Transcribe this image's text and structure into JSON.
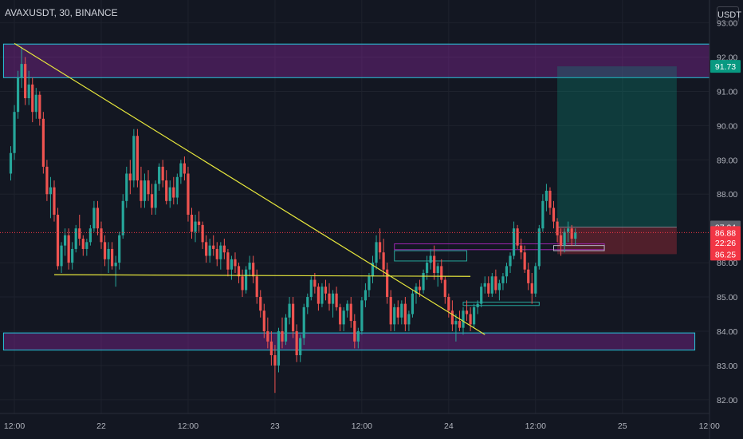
{
  "chart_data": {
    "type": "candlestick",
    "title": "AVAXUSDT, 30, BINANCE",
    "unit": "USDT",
    "ylim": [
      81.6,
      93.2
    ],
    "y_ticks": [
      "93.00",
      "92.00",
      "91.00",
      "90.00",
      "89.00",
      "88.00",
      "86.00",
      "85.00",
      "84.00",
      "83.00",
      "82.00"
    ],
    "x_ticks": [
      {
        "label": "12:00",
        "t": 1
      },
      {
        "label": "22",
        "t": 25
      },
      {
        "label": "12:00",
        "t": 49
      },
      {
        "label": "23",
        "t": 73
      },
      {
        "label": "12:00",
        "t": 97
      },
      {
        "label": "24",
        "t": 121
      },
      {
        "label": "12:00",
        "t": 145
      },
      {
        "label": "25",
        "t": 169
      },
      {
        "label": "12:00",
        "t": 193
      }
    ],
    "price_tags": [
      {
        "label": "91.73",
        "price": 91.73,
        "color": "#089981"
      },
      {
        "label": "87.04",
        "price": 87.04,
        "color": "#5d606b"
      },
      {
        "label": "86.88",
        "price": 86.88,
        "color": "#f23645"
      },
      {
        "label": "22:26",
        "price": 86.58,
        "color": "#f23645"
      },
      {
        "label": "86.25",
        "price": 86.25,
        "color": "#f23645"
      }
    ],
    "current_price": 86.88,
    "zones": [
      {
        "t1": -2,
        "t2": 196,
        "p_top": 92.38,
        "p_bot": 91.4
      },
      {
        "t1": -2,
        "t2": 189,
        "p_top": 83.95,
        "p_bot": 83.45
      }
    ],
    "small_boxes": [
      {
        "t1": 106,
        "t2": 164,
        "p_top": 86.55,
        "p_bot": 86.38,
        "color": "#9c27b0"
      },
      {
        "t1": 106,
        "t2": 126,
        "p_top": 86.35,
        "p_bot": 86.05,
        "color": "#26a69a"
      },
      {
        "t1": 125,
        "t2": 146,
        "p_top": 84.85,
        "p_bot": 84.75,
        "color": "#26a69a"
      },
      {
        "t1": 150,
        "t2": 164,
        "p_top": 86.5,
        "p_bot": 86.35,
        "color": "#b2b5be"
      }
    ],
    "trendlines": [
      {
        "t1": 1,
        "p1": 92.4,
        "t2": 131,
        "p2": 83.9
      },
      {
        "t1": 12,
        "p1": 85.65,
        "t2": 127,
        "p2": 85.6
      }
    ],
    "position": {
      "t1": 151,
      "t2": 184,
      "entry": 87.04,
      "target": 91.73,
      "stop": 86.25
    },
    "candles": [
      [
        88.6,
        89.4,
        88.4,
        89.2
      ],
      [
        89.2,
        90.6,
        89.0,
        90.4
      ],
      [
        90.4,
        91.6,
        90.2,
        91.4
      ],
      [
        91.4,
        92.3,
        91.1,
        91.8
      ],
      [
        91.8,
        92.0,
        90.6,
        90.8
      ],
      [
        90.8,
        91.6,
        90.6,
        91.2
      ],
      [
        91.2,
        91.4,
        90.1,
        90.4
      ],
      [
        90.4,
        91.1,
        90.2,
        90.9
      ],
      [
        90.9,
        91.0,
        90.0,
        90.2
      ],
      [
        90.2,
        90.4,
        88.6,
        88.8
      ],
      [
        88.8,
        89.0,
        87.8,
        88.0
      ],
      [
        88.0,
        88.5,
        87.3,
        88.2
      ],
      [
        88.2,
        88.4,
        87.2,
        87.4
      ],
      [
        87.4,
        87.6,
        85.8,
        85.9
      ],
      [
        85.9,
        86.6,
        85.7,
        86.5
      ],
      [
        86.5,
        87.0,
        86.2,
        86.8
      ],
      [
        86.8,
        87.0,
        85.8,
        86.0
      ],
      [
        86.0,
        86.6,
        85.8,
        86.4
      ],
      [
        86.4,
        87.1,
        86.3,
        87.0
      ],
      [
        87.0,
        87.4,
        86.5,
        86.7
      ],
      [
        86.7,
        86.8,
        86.2,
        86.4
      ],
      [
        86.4,
        86.7,
        86.2,
        86.6
      ],
      [
        86.6,
        87.1,
        86.5,
        87.0
      ],
      [
        87.0,
        87.8,
        86.9,
        87.6
      ],
      [
        87.6,
        87.8,
        86.8,
        87.0
      ],
      [
        87.0,
        87.2,
        86.4,
        86.6
      ],
      [
        86.6,
        86.8,
        85.9,
        86.1
      ],
      [
        86.1,
        86.6,
        85.7,
        86.4
      ],
      [
        86.4,
        86.6,
        85.8,
        85.9
      ],
      [
        85.9,
        86.2,
        85.3,
        86.0
      ],
      [
        86.0,
        86.9,
        85.8,
        86.8
      ],
      [
        86.8,
        88.0,
        86.7,
        87.8
      ],
      [
        87.8,
        88.8,
        87.6,
        88.6
      ],
      [
        88.6,
        89.0,
        88.0,
        88.4
      ],
      [
        88.4,
        89.9,
        88.2,
        89.7
      ],
      [
        89.7,
        89.9,
        88.2,
        88.4
      ],
      [
        88.4,
        88.8,
        87.6,
        87.8
      ],
      [
        87.8,
        88.6,
        87.6,
        88.4
      ],
      [
        88.4,
        88.7,
        87.8,
        88.0
      ],
      [
        88.0,
        88.3,
        87.4,
        87.6
      ],
      [
        87.6,
        88.4,
        87.4,
        88.3
      ],
      [
        88.3,
        88.9,
        88.1,
        88.8
      ],
      [
        88.8,
        89.0,
        88.2,
        88.4
      ],
      [
        88.4,
        88.7,
        87.7,
        87.8
      ],
      [
        87.8,
        88.4,
        87.6,
        88.2
      ],
      [
        88.2,
        88.5,
        87.7,
        87.9
      ],
      [
        87.9,
        88.6,
        87.7,
        88.5
      ],
      [
        88.5,
        89.0,
        88.3,
        88.9
      ],
      [
        88.9,
        89.1,
        88.4,
        88.6
      ],
      [
        88.6,
        88.8,
        87.2,
        87.4
      ],
      [
        87.4,
        87.6,
        86.7,
        86.9
      ],
      [
        86.9,
        87.4,
        86.6,
        87.2
      ],
      [
        87.2,
        87.5,
        86.9,
        87.1
      ],
      [
        87.1,
        87.2,
        86.4,
        86.6
      ],
      [
        86.6,
        86.8,
        86.0,
        86.2
      ],
      [
        86.2,
        86.7,
        86.0,
        86.5
      ],
      [
        86.5,
        86.8,
        86.2,
        86.4
      ],
      [
        86.4,
        86.6,
        85.9,
        86.1
      ],
      [
        86.1,
        86.6,
        85.8,
        86.5
      ],
      [
        86.5,
        86.7,
        86.1,
        86.3
      ],
      [
        86.3,
        86.4,
        85.6,
        85.8
      ],
      [
        85.8,
        86.2,
        85.5,
        86.1
      ],
      [
        86.1,
        86.3,
        85.7,
        85.9
      ],
      [
        85.9,
        86.0,
        85.4,
        85.6
      ],
      [
        85.6,
        85.8,
        85.0,
        85.2
      ],
      [
        85.2,
        85.9,
        85.1,
        85.8
      ],
      [
        85.8,
        86.2,
        85.6,
        86.0
      ],
      [
        86.0,
        86.2,
        85.4,
        85.6
      ],
      [
        85.6,
        85.8,
        84.8,
        85.0
      ],
      [
        85.0,
        85.2,
        84.4,
        84.6
      ],
      [
        84.6,
        84.8,
        83.8,
        84.0
      ],
      [
        84.0,
        84.4,
        83.5,
        83.7
      ],
      [
        83.7,
        84.0,
        83.0,
        83.3
      ],
      [
        83.3,
        83.6,
        82.2,
        83.0
      ],
      [
        83.0,
        84.1,
        82.8,
        84.0
      ],
      [
        84.0,
        84.4,
        83.5,
        83.7
      ],
      [
        83.7,
        84.5,
        83.6,
        84.4
      ],
      [
        84.4,
        85.0,
        84.2,
        84.8
      ],
      [
        84.8,
        85.0,
        83.8,
        84.0
      ],
      [
        84.0,
        84.2,
        83.1,
        83.3
      ],
      [
        83.3,
        83.9,
        83.1,
        83.8
      ],
      [
        83.8,
        84.8,
        83.6,
        84.7
      ],
      [
        84.7,
        85.1,
        84.5,
        85.0
      ],
      [
        85.0,
        85.6,
        84.9,
        85.5
      ],
      [
        85.5,
        85.7,
        85.1,
        85.3
      ],
      [
        85.3,
        85.4,
        84.6,
        84.8
      ],
      [
        84.8,
        85.4,
        84.7,
        85.3
      ],
      [
        85.3,
        85.5,
        84.9,
        85.1
      ],
      [
        85.1,
        85.4,
        84.6,
        84.8
      ],
      [
        84.8,
        85.2,
        84.4,
        85.1
      ],
      [
        85.1,
        85.3,
        84.6,
        84.7
      ],
      [
        84.7,
        84.8,
        84.0,
        84.2
      ],
      [
        84.2,
        84.7,
        84.0,
        84.6
      ],
      [
        84.6,
        84.9,
        84.4,
        84.8
      ],
      [
        84.8,
        85.0,
        84.1,
        84.3
      ],
      [
        84.3,
        84.5,
        83.5,
        83.7
      ],
      [
        83.7,
        84.1,
        83.5,
        84.0
      ],
      [
        84.0,
        85.0,
        83.9,
        84.9
      ],
      [
        84.9,
        85.4,
        84.7,
        85.2
      ],
      [
        85.2,
        85.7,
        85.0,
        85.6
      ],
      [
        85.6,
        86.2,
        85.4,
        86.0
      ],
      [
        86.0,
        86.8,
        85.8,
        86.6
      ],
      [
        86.6,
        87.0,
        86.1,
        86.3
      ],
      [
        86.3,
        86.7,
        85.6,
        85.8
      ],
      [
        85.8,
        86.0,
        84.8,
        85.0
      ],
      [
        85.0,
        85.2,
        84.0,
        84.2
      ],
      [
        84.2,
        84.8,
        84.0,
        84.7
      ],
      [
        84.7,
        84.9,
        84.2,
        84.4
      ],
      [
        84.4,
        84.9,
        84.2,
        84.8
      ],
      [
        84.8,
        85.0,
        84.0,
        84.2
      ],
      [
        84.2,
        84.6,
        84.0,
        84.5
      ],
      [
        84.5,
        85.2,
        84.4,
        85.1
      ],
      [
        85.1,
        85.4,
        84.8,
        85.3
      ],
      [
        85.3,
        85.5,
        85.0,
        85.2
      ],
      [
        85.2,
        85.8,
        85.1,
        85.7
      ],
      [
        85.7,
        86.2,
        85.5,
        86.0
      ],
      [
        86.0,
        86.4,
        85.8,
        86.2
      ],
      [
        86.2,
        86.5,
        85.5,
        85.7
      ],
      [
        85.7,
        86.0,
        85.3,
        85.9
      ],
      [
        85.9,
        86.1,
        85.4,
        85.5
      ],
      [
        85.5,
        85.6,
        84.8,
        85.0
      ],
      [
        85.0,
        85.1,
        84.4,
        84.6
      ],
      [
        84.6,
        84.9,
        84.0,
        84.2
      ],
      [
        84.2,
        84.5,
        83.7,
        84.3
      ],
      [
        84.3,
        84.6,
        84.0,
        84.1
      ],
      [
        84.1,
        84.7,
        83.9,
        84.6
      ],
      [
        84.6,
        84.9,
        84.3,
        84.5
      ],
      [
        84.5,
        84.7,
        84.0,
        84.2
      ],
      [
        84.2,
        84.8,
        84.1,
        84.7
      ],
      [
        84.7,
        84.9,
        84.5,
        84.8
      ],
      [
        84.8,
        85.4,
        84.7,
        85.3
      ],
      [
        85.3,
        85.6,
        85.1,
        85.4
      ],
      [
        85.4,
        85.6,
        85.0,
        85.1
      ],
      [
        85.1,
        85.7,
        85.0,
        85.6
      ],
      [
        85.6,
        85.8,
        85.1,
        85.2
      ],
      [
        85.2,
        85.5,
        84.9,
        85.4
      ],
      [
        85.4,
        85.7,
        85.2,
        85.6
      ],
      [
        85.6,
        86.0,
        85.4,
        85.9
      ],
      [
        85.9,
        86.3,
        85.7,
        86.2
      ],
      [
        86.2,
        87.2,
        86.1,
        87.0
      ],
      [
        87.0,
        87.1,
        86.4,
        86.5
      ],
      [
        86.5,
        86.7,
        86.1,
        86.3
      ],
      [
        86.3,
        86.5,
        85.7,
        85.8
      ],
      [
        85.8,
        86.0,
        85.2,
        85.4
      ],
      [
        85.4,
        85.7,
        84.8,
        85.1
      ],
      [
        85.1,
        86.0,
        85.0,
        85.9
      ],
      [
        85.9,
        87.1,
        85.8,
        87.0
      ],
      [
        87.0,
        88.0,
        86.9,
        87.8
      ],
      [
        87.8,
        88.3,
        87.5,
        88.1
      ],
      [
        88.1,
        88.2,
        87.4,
        87.6
      ],
      [
        87.6,
        87.8,
        87.0,
        87.2
      ],
      [
        87.2,
        87.3,
        86.6,
        86.8
      ],
      [
        86.8,
        87.0,
        86.2,
        86.5
      ],
      [
        86.5,
        87.0,
        86.3,
        86.9
      ],
      [
        86.9,
        87.2,
        86.6,
        87.0
      ],
      [
        87.0,
        87.1,
        86.5,
        86.7
      ],
      [
        86.7,
        87.0,
        86.5,
        86.88
      ]
    ]
  }
}
